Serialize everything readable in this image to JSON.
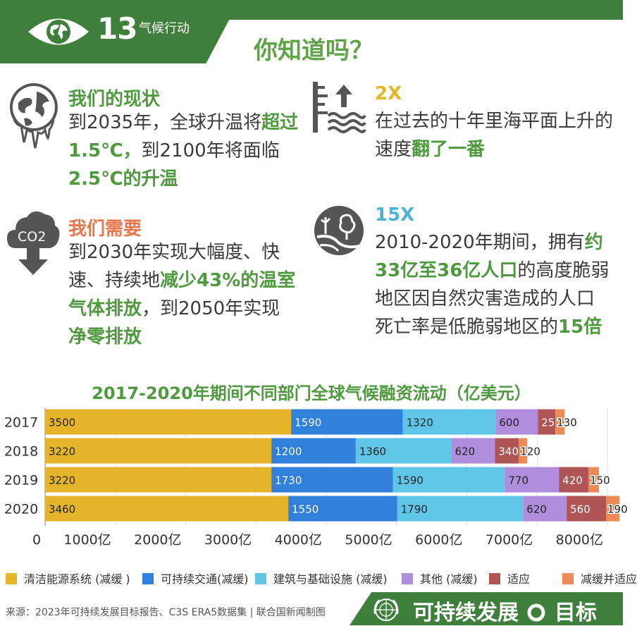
{
  "header": {
    "goal_number": "13",
    "goal_label": "气候行动",
    "title": "你知道吗？"
  },
  "facts": [
    {
      "title": "我们的现状",
      "title_color": "#4f9a3f",
      "lines": [
        [
          {
            "t": "到2035年，全球升温将"
          },
          {
            "t": "超过",
            "b": true
          }
        ],
        [
          {
            "t": "1.5℃，",
            "b": true
          },
          {
            "t": "到2100年将面临"
          }
        ],
        [
          {
            "t": "2.5℃的升温",
            "b": true
          }
        ]
      ],
      "icon": "melting-earth-icon"
    },
    {
      "title": "2X",
      "title_color": "#e2b627",
      "lines": [
        [
          {
            "t": "在过去的十年里海平面上升的"
          }
        ],
        [
          {
            "t": "速度"
          },
          {
            "t": "翻了一番",
            "b": true
          }
        ]
      ],
      "icon": "sea-level-rise-icon"
    },
    {
      "title": "我们需要",
      "title_color": "#e8764a",
      "lines": [
        [
          {
            "t": "到2030年实现大幅度、快"
          }
        ],
        [
          {
            "t": "速、持续地"
          },
          {
            "t": "减少43%的温室",
            "b": true
          }
        ],
        [
          {
            "t": "气体排放",
            "b": true
          },
          {
            "t": "，到2050年实现"
          }
        ],
        [
          {
            "t": "净零排放",
            "b": true
          }
        ]
      ],
      "icon": "co2-cloud-icon"
    },
    {
      "title": "15X",
      "title_color": "#4ab3d6",
      "lines": [
        [
          {
            "t": "2010-2020年期间，拥有"
          },
          {
            "t": "约",
            "b": true
          }
        ],
        [
          {
            "t": "33亿至36亿人口",
            "b": true
          },
          {
            "t": "的高度脆弱"
          }
        ],
        [
          {
            "t": "地区因自然灾害造成的人口"
          }
        ],
        [
          {
            "t": "死亡率是低脆弱地区的"
          },
          {
            "t": "15倍",
            "b": true
          }
        ]
      ],
      "icon": "landslide-tree-icon"
    }
  ],
  "co2_label": "CO2",
  "chart_data": {
    "type": "bar",
    "orientation": "horizontal",
    "stacked": true,
    "title": "2017-2020年期间不同部门全球气候融资流动（亿美元）",
    "categories": [
      "2017",
      "2018",
      "2019",
      "2020"
    ],
    "series": [
      {
        "name": "清洁能源系统 (减缓 )",
        "color": "#e6b428",
        "values": [
          3500,
          3220,
          3220,
          3460
        ]
      },
      {
        "name": "可持续交通(减缓)",
        "color": "#2f7fdb",
        "values": [
          1590,
          1200,
          1730,
          1550
        ]
      },
      {
        "name": "建筑与基础设施 (减缓)",
        "color": "#5fc6e8",
        "values": [
          1320,
          1360,
          1590,
          1790
        ]
      },
      {
        "name": "其他 (减缓)",
        "color": "#b18ddd",
        "values": [
          600,
          620,
          770,
          620
        ]
      },
      {
        "name": "适应",
        "color": "#b05555",
        "values": [
          250,
          340,
          420,
          560
        ]
      },
      {
        "name": "减缓并适应",
        "color": "#ee8a55",
        "values": [
          130,
          120,
          150,
          190
        ]
      }
    ],
    "xlim": [
      0,
      8000
    ],
    "x_ticks": [
      "0",
      "1000亿",
      "2000亿",
      "3000亿",
      "4000亿",
      "5000亿",
      "6000亿",
      "7000亿",
      "8000亿"
    ],
    "grid": true,
    "legend": "bottom"
  },
  "footer": {
    "source": "来源：2023年可持续发展目标报告、C3S ERA5数据集  |  联合国新闻制图",
    "brand_left": "可持续发展",
    "brand_right": "目标"
  }
}
